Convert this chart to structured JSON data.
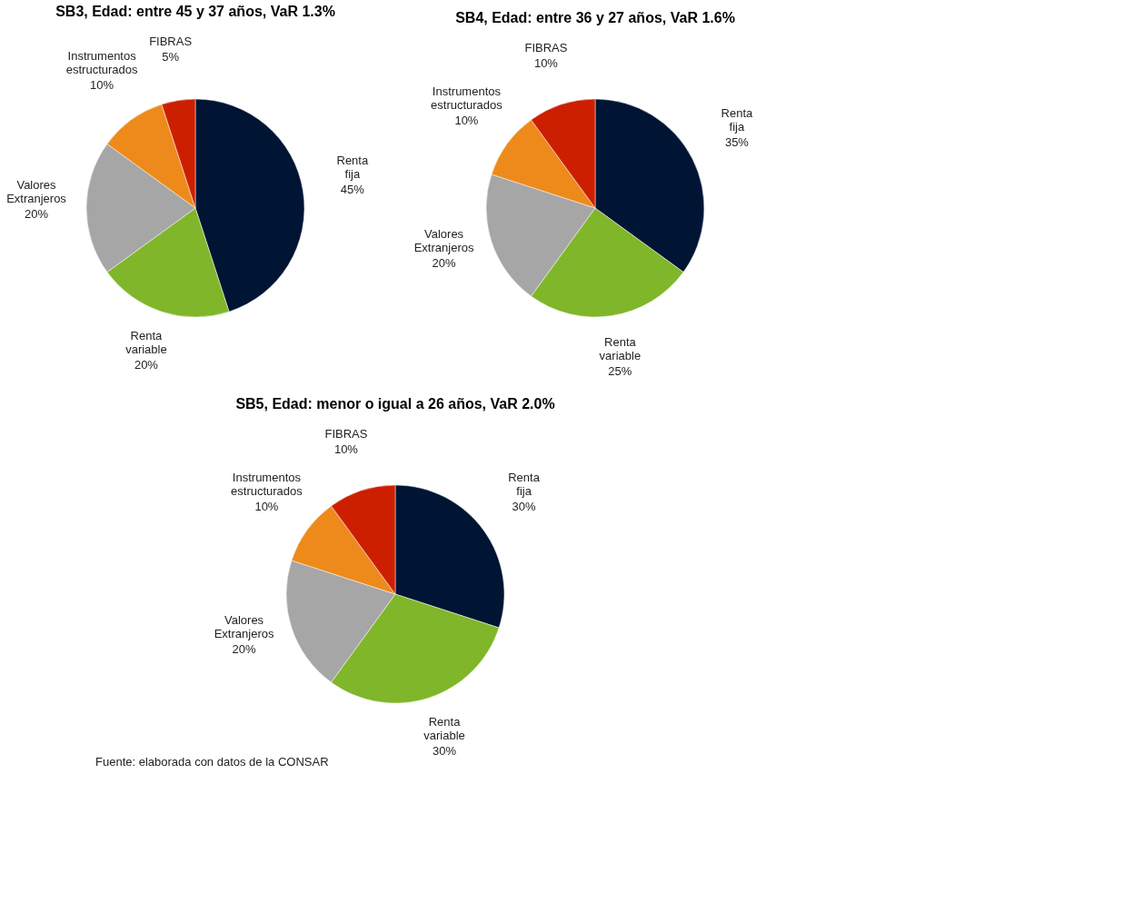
{
  "chart_data": [
    {
      "type": "pie",
      "title": "SB3, Edad: entre 45 y 37 años, VaR 1.3%",
      "categories": [
        "Renta fija",
        "Renta variable",
        "Valores Extranjeros",
        "Instrumentos estructurados",
        "FIBRAS"
      ],
      "values": [
        45,
        20,
        20,
        10,
        5
      ],
      "value_labels": [
        "45%",
        "20%",
        "20%",
        "10%",
        "5%"
      ],
      "colors": [
        "#001433",
        "#80b62a",
        "#a6a6a6",
        "#ee8a1b",
        "#cc1f00"
      ],
      "legend": false
    },
    {
      "type": "pie",
      "title": "SB4, Edad: entre 36 y 27 años, VaR 1.6%",
      "categories": [
        "Renta fija",
        "Renta variable",
        "Valores Extranjeros",
        "Instrumentos estructurados",
        "FIBRAS"
      ],
      "values": [
        35,
        25,
        20,
        10,
        10
      ],
      "value_labels": [
        "35%",
        "25%",
        "20%",
        "10%",
        "10%"
      ],
      "colors": [
        "#001433",
        "#80b62a",
        "#a6a6a6",
        "#ee8a1b",
        "#cc1f00"
      ],
      "legend": false
    },
    {
      "type": "pie",
      "title": "SB5, Edad: menor o igual a 26 años, VaR 2.0%",
      "categories": [
        "Renta fija",
        "Renta variable",
        "Valores Extranjeros",
        "Instrumentos estructurados",
        "FIBRAS"
      ],
      "values": [
        30,
        30,
        20,
        10,
        10
      ],
      "value_labels": [
        "30%",
        "30%",
        "20%",
        "10%",
        "10%"
      ],
      "colors": [
        "#001433",
        "#80b62a",
        "#a6a6a6",
        "#ee8a1b",
        "#cc1f00"
      ],
      "legend": false,
      "annotations": [
        "Fuente: elaborada con datos de la CONSAR"
      ]
    }
  ]
}
